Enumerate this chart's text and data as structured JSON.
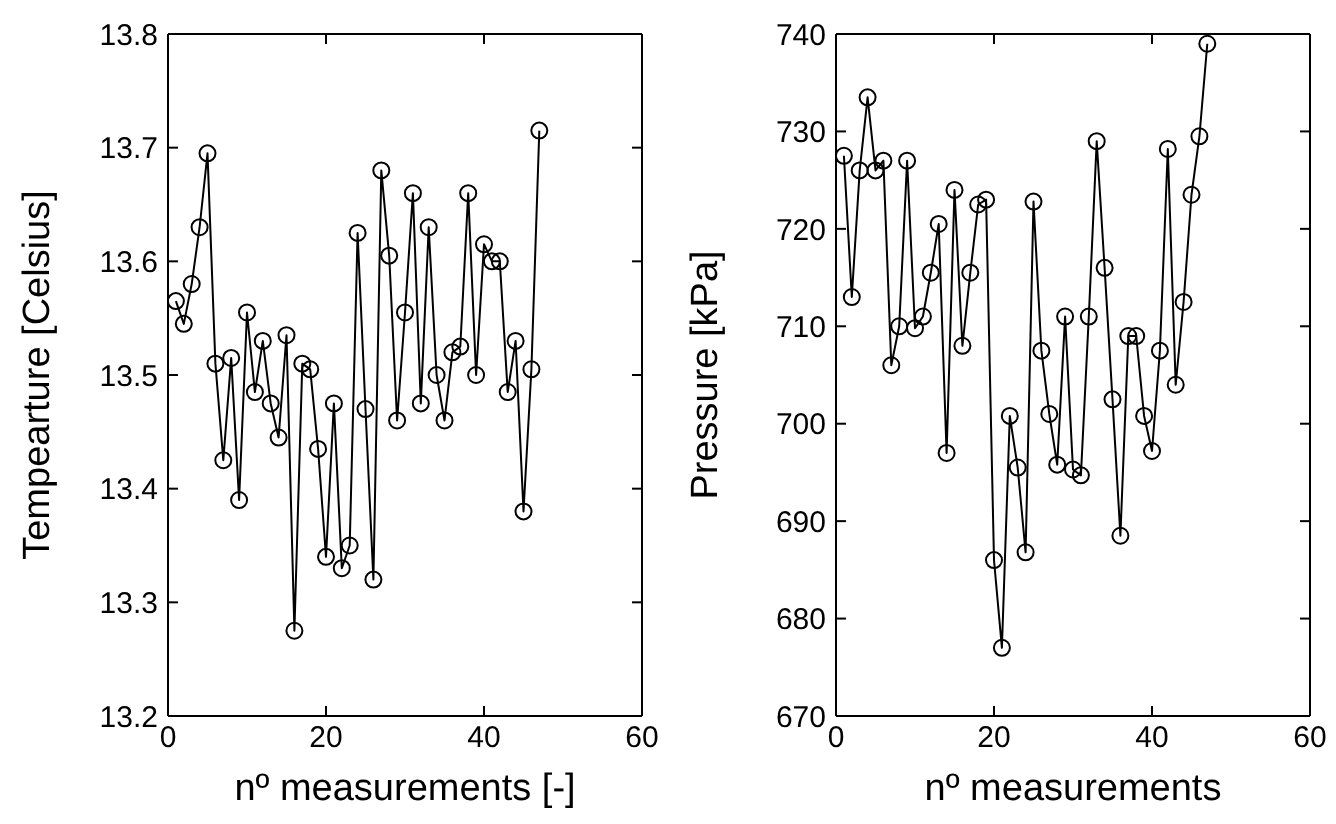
{
  "chart_data": [
    {
      "type": "line",
      "xlabel": "nº measurements [-]",
      "ylabel": "Tempearture [Celsius]",
      "x": [
        1,
        2,
        3,
        4,
        5,
        6,
        7,
        8,
        9,
        10,
        11,
        12,
        13,
        14,
        15,
        16,
        17,
        18,
        19,
        20,
        21,
        22,
        23,
        24,
        25,
        26,
        27,
        28,
        29,
        30,
        31,
        32,
        33,
        34,
        35,
        36,
        37,
        38,
        39,
        40,
        41,
        42,
        43,
        44,
        45,
        46,
        47
      ],
      "series": [
        {
          "color": "#000000",
          "values": [
            13.565,
            13.545,
            13.58,
            13.63,
            13.695,
            13.51,
            13.425,
            13.515,
            13.39,
            13.555,
            13.485,
            13.53,
            13.475,
            13.445,
            13.535,
            13.275,
            13.51,
            13.505,
            13.435,
            13.34,
            13.475,
            13.33,
            13.35,
            13.625,
            13.47,
            13.32,
            13.68,
            13.605,
            13.46,
            13.555,
            13.66,
            13.475,
            13.63,
            13.5,
            13.46,
            13.52,
            13.525,
            13.66,
            13.5,
            13.615,
            13.6,
            13.6,
            13.485,
            13.53,
            13.38,
            13.505,
            13.715
          ]
        }
      ],
      "xlim": [
        0,
        60
      ],
      "xticks": [
        0,
        20,
        40,
        60
      ],
      "ylim": [
        13.2,
        13.8
      ],
      "yticks": [
        13.2,
        13.3,
        13.4,
        13.5,
        13.6,
        13.7,
        13.8
      ],
      "marker": "circle",
      "line_style": "solid",
      "grid": false,
      "legend": false
    },
    {
      "type": "line",
      "xlabel": "nº measurements",
      "ylabel": "Pressure [kPa]",
      "x": [
        1,
        2,
        3,
        4,
        5,
        6,
        7,
        8,
        9,
        10,
        11,
        12,
        13,
        14,
        15,
        16,
        17,
        18,
        19,
        20,
        21,
        22,
        23,
        24,
        25,
        26,
        27,
        28,
        29,
        30,
        31,
        32,
        33,
        34,
        35,
        36,
        37,
        38,
        39,
        40,
        41,
        42,
        43,
        44,
        45,
        46,
        47
      ],
      "series": [
        {
          "color": "#000000",
          "values": [
            727.5,
            713,
            726,
            733.5,
            726,
            727,
            706,
            710,
            727,
            709.8,
            711,
            715.5,
            720.5,
            697,
            724,
            708,
            715.5,
            722.5,
            723,
            686,
            677,
            700.8,
            695.5,
            686.8,
            722.8,
            707.5,
            701,
            695.8,
            711,
            695.3,
            694.7,
            711,
            729,
            716,
            702.5,
            688.5,
            709,
            709,
            700.8,
            697.2,
            707.5,
            728.2,
            704,
            712.5,
            723.5,
            729.5,
            739
          ]
        }
      ],
      "xlim": [
        0,
        60
      ],
      "xticks": [
        0,
        20,
        40,
        60
      ],
      "ylim": [
        670,
        740
      ],
      "yticks": [
        670,
        680,
        690,
        700,
        710,
        720,
        730,
        740
      ],
      "marker": "circle",
      "line_style": "solid",
      "grid": false,
      "legend": false
    }
  ]
}
